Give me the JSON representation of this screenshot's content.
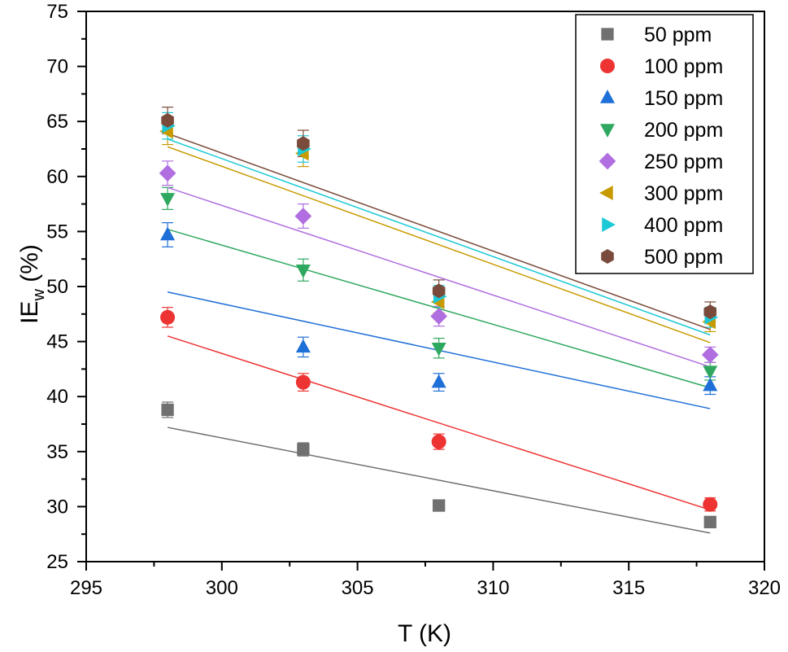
{
  "chart_data": {
    "type": "scatter",
    "xlabel": "T (K)",
    "ylabel": {
      "main": "IE",
      "subscript": "w",
      "suffix": " (%)"
    },
    "xlim": [
      295,
      320
    ],
    "ylim": [
      25,
      75
    ],
    "x_ticks": [
      "295",
      "300",
      "305",
      "310",
      "315",
      "320"
    ],
    "y_ticks": [
      "25",
      "30",
      "35",
      "40",
      "45",
      "50",
      "55",
      "60",
      "65",
      "70",
      "75"
    ],
    "legend_position": "top-right",
    "x": [
      298,
      303,
      308,
      318
    ],
    "series": [
      {
        "name": "50 ppm",
        "color": "#707070",
        "marker": "square",
        "values": [
          38.8,
          35.2,
          30.1,
          28.6
        ],
        "errors": [
          0.7,
          0.6,
          0.4,
          0.4
        ],
        "fit": [
          37.2,
          27.6
        ]
      },
      {
        "name": "100 ppm",
        "color": "#ee3333",
        "marker": "circle",
        "values": [
          47.2,
          41.3,
          35.9,
          30.2
        ],
        "errors": [
          0.9,
          0.8,
          0.7,
          0.6
        ],
        "fit": [
          45.5,
          29.7
        ]
      },
      {
        "name": "150 ppm",
        "color": "#1f6fd8",
        "marker": "triangle-up",
        "values": [
          54.7,
          44.5,
          41.3,
          41.0
        ],
        "errors": [
          1.1,
          0.9,
          0.8,
          0.8
        ],
        "fit": [
          49.5,
          38.9
        ]
      },
      {
        "name": "200 ppm",
        "color": "#2fa85f",
        "marker": "triangle-down",
        "values": [
          58.0,
          51.5,
          44.4,
          42.3
        ],
        "errors": [
          1.0,
          1.0,
          0.9,
          0.8
        ],
        "fit": [
          55.2,
          40.8
        ]
      },
      {
        "name": "250 ppm",
        "color": "#b06ee0",
        "marker": "diamond",
        "values": [
          60.3,
          56.4,
          47.3,
          43.8
        ],
        "errors": [
          1.1,
          1.1,
          0.9,
          0.7
        ],
        "fit": [
          59.0,
          42.7
        ]
      },
      {
        "name": "300 ppm",
        "color": "#c79a00",
        "marker": "triangle-left",
        "values": [
          64.1,
          62.1,
          48.6,
          46.8
        ],
        "errors": [
          1.2,
          1.2,
          1.0,
          0.9
        ],
        "fit": [
          62.7,
          44.9
        ]
      },
      {
        "name": "400 ppm",
        "color": "#1bc9d6",
        "marker": "triangle-right",
        "values": [
          64.6,
          62.5,
          49.1,
          47.2
        ],
        "errors": [
          1.2,
          1.2,
          1.0,
          0.9
        ],
        "fit": [
          63.4,
          45.6
        ]
      },
      {
        "name": "500 ppm",
        "color": "#7a4b3a",
        "marker": "hexagon",
        "values": [
          65.1,
          63.0,
          49.6,
          47.7
        ],
        "errors": [
          1.2,
          1.2,
          1.0,
          0.9
        ],
        "fit": [
          63.9,
          46.1
        ]
      }
    ]
  }
}
